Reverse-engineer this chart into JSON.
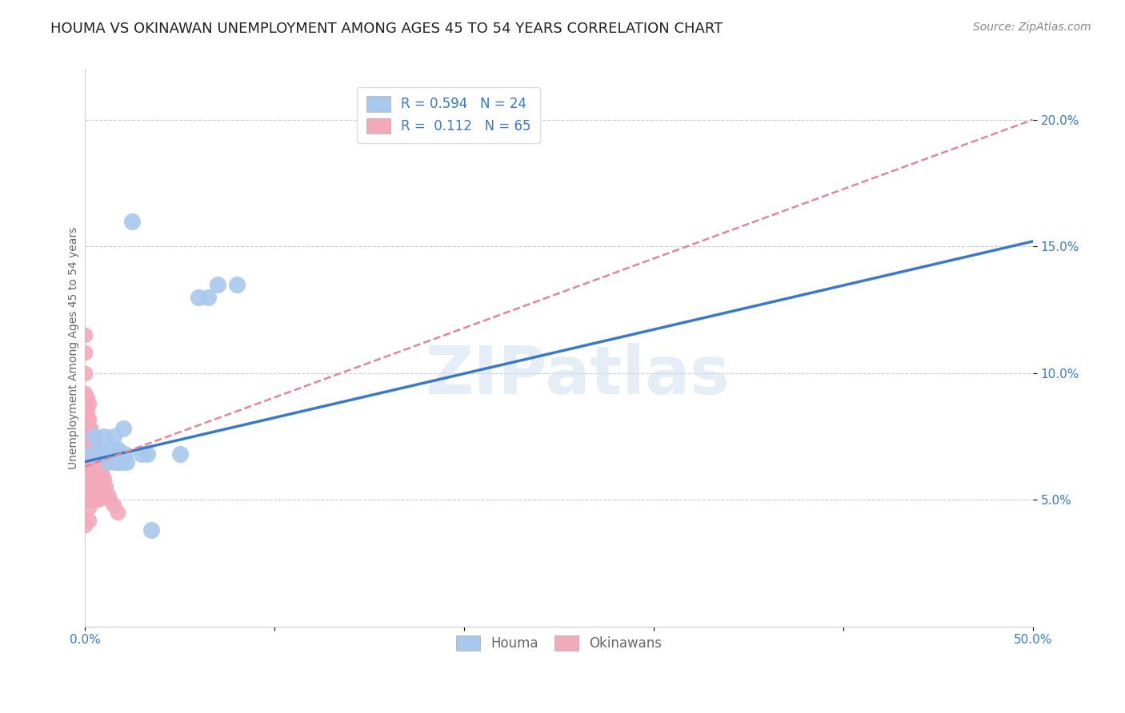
{
  "title": "HOUMA VS OKINAWAN UNEMPLOYMENT AMONG AGES 45 TO 54 YEARS CORRELATION CHART",
  "source": "Source: ZipAtlas.com",
  "ylabel_text": "Unemployment Among Ages 45 to 54 years",
  "xlim": [
    0.0,
    0.5
  ],
  "ylim": [
    0.0,
    0.22
  ],
  "xticks": [
    0.0,
    0.1,
    0.2,
    0.3,
    0.4,
    0.5
  ],
  "xtick_labels": [
    "0.0%",
    "",
    "",
    "",
    "",
    "50.0%"
  ],
  "yticks": [
    0.05,
    0.1,
    0.15,
    0.2
  ],
  "ytick_labels": [
    "5.0%",
    "10.0%",
    "15.0%",
    "20.0%"
  ],
  "houma_R": 0.594,
  "houma_N": 24,
  "okinawan_R": 0.112,
  "okinawan_N": 65,
  "houma_color": "#A8C8EE",
  "okinawan_color": "#F2AABB",
  "houma_line_color": "#3A78C8",
  "okinawan_line_color": "#E08898",
  "legend_label_1": "Houma",
  "legend_label_2": "Okinawans",
  "watermark": "ZIPatlas",
  "houma_x": [
    0.002,
    0.005,
    0.008,
    0.01,
    0.01,
    0.012,
    0.014,
    0.015,
    0.016,
    0.017,
    0.018,
    0.019,
    0.02,
    0.021,
    0.022,
    0.025,
    0.03,
    0.033,
    0.035,
    0.05,
    0.06,
    0.065,
    0.07,
    0.08
  ],
  "houma_y": [
    0.068,
    0.075,
    0.07,
    0.068,
    0.075,
    0.065,
    0.07,
    0.075,
    0.065,
    0.07,
    0.065,
    0.065,
    0.078,
    0.068,
    0.065,
    0.16,
    0.068,
    0.068,
    0.038,
    0.068,
    0.13,
    0.13,
    0.135,
    0.135
  ],
  "okinawan_x": [
    0.0,
    0.0,
    0.0,
    0.0,
    0.0,
    0.0,
    0.0,
    0.0,
    0.0,
    0.0,
    0.001,
    0.001,
    0.001,
    0.001,
    0.001,
    0.001,
    0.001,
    0.001,
    0.002,
    0.002,
    0.002,
    0.002,
    0.002,
    0.002,
    0.002,
    0.002,
    0.002,
    0.002,
    0.003,
    0.003,
    0.003,
    0.003,
    0.003,
    0.004,
    0.004,
    0.004,
    0.004,
    0.004,
    0.004,
    0.005,
    0.005,
    0.005,
    0.005,
    0.005,
    0.006,
    0.006,
    0.006,
    0.006,
    0.006,
    0.007,
    0.007,
    0.007,
    0.007,
    0.008,
    0.008,
    0.008,
    0.009,
    0.009,
    0.01,
    0.01,
    0.011,
    0.012,
    0.013,
    0.015,
    0.017
  ],
  "okinawan_y": [
    0.115,
    0.108,
    0.1,
    0.092,
    0.085,
    0.078,
    0.072,
    0.062,
    0.055,
    0.04,
    0.09,
    0.085,
    0.082,
    0.078,
    0.072,
    0.065,
    0.058,
    0.05,
    0.088,
    0.082,
    0.078,
    0.072,
    0.067,
    0.062,
    0.057,
    0.052,
    0.047,
    0.042,
    0.078,
    0.072,
    0.067,
    0.062,
    0.058,
    0.075,
    0.07,
    0.065,
    0.06,
    0.055,
    0.05,
    0.072,
    0.068,
    0.062,
    0.057,
    0.052,
    0.068,
    0.062,
    0.058,
    0.054,
    0.05,
    0.065,
    0.06,
    0.055,
    0.05,
    0.062,
    0.057,
    0.052,
    0.06,
    0.055,
    0.058,
    0.052,
    0.055,
    0.052,
    0.05,
    0.048,
    0.045
  ],
  "houma_line_x0": 0.0,
  "houma_line_y0": 0.065,
  "houma_line_x1": 0.5,
  "houma_line_y1": 0.152,
  "okinawan_line_x0": 0.0,
  "okinawan_line_y0": 0.063,
  "okinawan_line_x1": 0.5,
  "okinawan_line_y1": 0.2,
  "background_color": "#FFFFFF",
  "grid_color": "#CCCCCC",
  "title_fontsize": 13,
  "axis_label_fontsize": 10,
  "tick_fontsize": 11,
  "legend_fontsize": 12,
  "source_fontsize": 10
}
